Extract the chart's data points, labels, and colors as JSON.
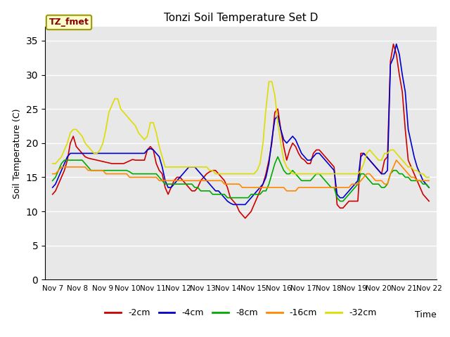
{
  "title": "Tonzi Soil Temperature Set D",
  "xlabel": "Time",
  "ylabel": "Soil Temperature (C)",
  "ylim": [
    0,
    37
  ],
  "yticks": [
    0,
    5,
    10,
    15,
    20,
    25,
    30,
    35
  ],
  "annotation_label": "TZ_fmet",
  "annotation_box_facecolor": "#ffffcc",
  "annotation_box_edgecolor": "#999900",
  "annotation_text_color": "#880000",
  "plot_bg_color": "#e8e8e8",
  "fig_bg_color": "#ffffff",
  "grid_color": "#ffffff",
  "x_labels": [
    "Nov 7",
    "Nov 8",
    "Nov 9",
    "Nov 10",
    "Nov 11",
    "Nov 12",
    "Nov 13",
    "Nov 14",
    "Nov 15",
    "Nov 16",
    "Nov 17",
    "Nov 18",
    "Nov 19",
    "Nov 20",
    "Nov 21",
    "Nov 22"
  ],
  "n_per_day": 8,
  "series": {
    "-2cm": {
      "color": "#cc0000",
      "data": [
        12.5,
        13.0,
        14.0,
        15.0,
        16.0,
        17.5,
        20.0,
        21.0,
        19.5,
        19.0,
        18.5,
        18.0,
        17.8,
        17.7,
        17.6,
        17.5,
        17.4,
        17.3,
        17.2,
        17.1,
        17.0,
        17.0,
        17.0,
        17.0,
        17.0,
        17.2,
        17.4,
        17.6,
        17.5,
        17.5,
        17.5,
        17.5,
        19.0,
        19.5,
        19.0,
        17.0,
        16.0,
        15.5,
        13.5,
        12.5,
        13.5,
        14.5,
        15.0,
        15.0,
        14.5,
        14.0,
        13.5,
        13.0,
        13.0,
        13.5,
        14.5,
        15.0,
        15.5,
        15.8,
        16.0,
        16.0,
        15.5,
        15.0,
        14.5,
        13.5,
        12.0,
        11.5,
        11.0,
        10.0,
        9.5,
        9.0,
        9.5,
        10.0,
        11.0,
        12.0,
        13.0,
        14.0,
        15.5,
        17.5,
        20.0,
        24.5,
        25.0,
        22.0,
        19.5,
        17.5,
        19.0,
        20.0,
        19.5,
        18.5,
        17.8,
        17.5,
        17.0,
        17.0,
        18.5,
        19.0,
        19.0,
        18.5,
        18.0,
        17.5,
        17.0,
        16.5,
        11.0,
        10.5,
        10.5,
        11.0,
        11.5,
        11.5,
        11.5,
        11.5,
        18.5,
        18.5,
        18.0,
        17.5,
        17.0,
        16.5,
        16.0,
        15.5,
        17.5,
        18.0,
        32.0,
        34.5,
        33.0,
        30.0,
        27.5,
        22.0,
        17.5,
        16.5,
        15.5,
        14.5,
        13.5,
        12.5,
        12.0,
        11.5
      ]
    },
    "-4cm": {
      "color": "#0000cc",
      "data": [
        13.5,
        14.0,
        15.0,
        16.0,
        17.0,
        18.0,
        18.5,
        18.5,
        18.5,
        18.5,
        18.5,
        18.5,
        18.5,
        18.5,
        18.5,
        18.5,
        18.5,
        18.5,
        18.5,
        18.5,
        18.5,
        18.5,
        18.5,
        18.5,
        18.5,
        18.5,
        18.5,
        18.5,
        18.5,
        18.5,
        18.5,
        18.5,
        19.0,
        19.2,
        19.0,
        18.5,
        18.0,
        16.5,
        14.5,
        13.5,
        13.5,
        14.0,
        14.5,
        15.0,
        15.5,
        16.0,
        16.5,
        16.5,
        16.5,
        16.0,
        15.5,
        15.0,
        14.5,
        14.0,
        13.5,
        13.0,
        13.0,
        12.5,
        12.0,
        11.5,
        11.2,
        11.0,
        11.0,
        11.0,
        11.0,
        11.0,
        11.5,
        12.0,
        12.5,
        13.0,
        13.5,
        14.0,
        15.0,
        17.0,
        20.5,
        23.5,
        24.0,
        22.0,
        20.5,
        20.0,
        20.5,
        21.0,
        20.5,
        19.5,
        18.5,
        18.0,
        17.5,
        17.5,
        18.0,
        18.5,
        18.5,
        18.0,
        17.5,
        17.0,
        16.5,
        16.0,
        12.5,
        12.0,
        12.0,
        12.5,
        13.0,
        13.5,
        14.0,
        14.5,
        18.0,
        18.5,
        18.0,
        17.5,
        17.0,
        16.5,
        16.0,
        15.5,
        15.5,
        16.0,
        31.5,
        32.5,
        34.5,
        33.0,
        30.0,
        27.5,
        22.0,
        20.0,
        18.0,
        16.5,
        15.5,
        14.5,
        14.0,
        13.5
      ]
    },
    "-8cm": {
      "color": "#00aa00",
      "data": [
        14.5,
        15.0,
        16.0,
        17.0,
        17.5,
        17.5,
        17.5,
        17.5,
        17.5,
        17.5,
        17.5,
        17.0,
        16.5,
        16.0,
        16.0,
        16.0,
        16.0,
        16.0,
        16.0,
        16.0,
        16.0,
        16.0,
        16.0,
        16.0,
        16.0,
        16.0,
        15.8,
        15.5,
        15.5,
        15.5,
        15.5,
        15.5,
        15.5,
        15.5,
        15.5,
        15.5,
        15.0,
        14.5,
        14.0,
        14.0,
        14.0,
        14.0,
        14.0,
        14.0,
        14.0,
        14.0,
        14.0,
        14.0,
        13.5,
        13.5,
        13.0,
        13.0,
        13.0,
        13.0,
        12.5,
        12.5,
        12.5,
        12.5,
        12.5,
        12.0,
        12.0,
        12.0,
        12.0,
        12.0,
        12.0,
        12.0,
        12.0,
        12.5,
        12.5,
        12.5,
        12.5,
        13.0,
        13.0,
        14.0,
        15.5,
        17.0,
        18.0,
        17.0,
        16.0,
        15.5,
        15.5,
        16.0,
        15.5,
        15.0,
        14.5,
        14.5,
        14.5,
        14.5,
        15.0,
        15.5,
        15.5,
        15.0,
        14.5,
        14.0,
        13.5,
        13.5,
        12.0,
        11.5,
        11.5,
        12.0,
        12.5,
        13.0,
        13.5,
        14.0,
        15.5,
        15.5,
        15.0,
        14.5,
        14.0,
        14.0,
        14.0,
        13.5,
        13.5,
        14.0,
        15.5,
        16.0,
        16.0,
        15.5,
        15.5,
        15.0,
        15.0,
        14.5,
        14.5,
        14.5,
        14.5,
        14.0,
        14.0,
        13.5
      ]
    },
    "-16cm": {
      "color": "#ff8800",
      "data": [
        15.5,
        15.5,
        16.0,
        16.5,
        16.5,
        16.5,
        16.5,
        16.5,
        16.5,
        16.5,
        16.5,
        16.5,
        16.0,
        16.0,
        16.0,
        16.0,
        16.0,
        16.0,
        15.5,
        15.5,
        15.5,
        15.5,
        15.5,
        15.5,
        15.5,
        15.5,
        15.0,
        15.0,
        15.0,
        15.0,
        15.0,
        15.0,
        15.0,
        15.0,
        15.0,
        15.0,
        14.5,
        14.5,
        14.5,
        14.5,
        14.5,
        14.5,
        14.5,
        14.5,
        14.5,
        14.5,
        14.5,
        14.5,
        14.5,
        14.5,
        14.5,
        14.5,
        14.5,
        14.5,
        14.5,
        14.5,
        14.5,
        14.5,
        14.0,
        14.0,
        14.0,
        14.0,
        14.0,
        14.0,
        13.5,
        13.5,
        13.5,
        13.5,
        13.5,
        13.5,
        13.5,
        13.5,
        13.5,
        13.5,
        13.5,
        13.5,
        13.5,
        13.5,
        13.5,
        13.0,
        13.0,
        13.0,
        13.0,
        13.5,
        13.5,
        13.5,
        13.5,
        13.5,
        13.5,
        13.5,
        13.5,
        13.5,
        13.5,
        13.5,
        13.5,
        13.5,
        13.5,
        13.5,
        13.5,
        13.5,
        13.5,
        14.0,
        14.0,
        14.0,
        14.5,
        15.0,
        15.5,
        15.5,
        15.0,
        14.5,
        14.5,
        14.5,
        14.0,
        14.0,
        15.5,
        16.5,
        17.5,
        17.0,
        16.5,
        16.0,
        15.5,
        15.0,
        15.0,
        14.5,
        14.5,
        14.5,
        14.5,
        14.5
      ]
    },
    "-32cm": {
      "color": "#dddd00",
      "data": [
        17.0,
        17.0,
        17.5,
        18.0,
        19.0,
        20.0,
        21.5,
        22.0,
        22.0,
        21.5,
        21.0,
        20.0,
        19.5,
        19.0,
        18.5,
        18.5,
        19.0,
        20.0,
        22.0,
        24.5,
        25.5,
        26.5,
        26.5,
        25.0,
        24.5,
        24.0,
        23.5,
        23.0,
        22.5,
        21.5,
        21.0,
        20.5,
        21.0,
        23.0,
        23.0,
        21.5,
        19.5,
        18.0,
        16.5,
        16.5,
        16.5,
        16.5,
        16.5,
        16.5,
        16.5,
        16.5,
        16.5,
        16.5,
        16.5,
        16.5,
        16.5,
        16.5,
        16.5,
        16.0,
        16.0,
        15.5,
        15.5,
        15.5,
        15.5,
        15.5,
        15.5,
        15.5,
        15.5,
        15.5,
        15.5,
        15.5,
        15.5,
        15.5,
        15.5,
        16.0,
        17.0,
        20.0,
        25.0,
        29.0,
        29.0,
        27.0,
        23.0,
        20.0,
        17.5,
        16.5,
        16.0,
        15.5,
        15.5,
        15.5,
        15.5,
        15.5,
        15.5,
        15.5,
        15.5,
        15.5,
        15.5,
        15.5,
        15.5,
        15.5,
        15.5,
        15.5,
        15.5,
        15.5,
        15.5,
        15.5,
        15.5,
        15.5,
        15.5,
        15.5,
        16.0,
        17.0,
        18.5,
        19.0,
        18.5,
        18.0,
        17.5,
        17.5,
        18.5,
        18.5,
        19.0,
        19.0,
        18.5,
        18.0,
        17.5,
        17.0,
        16.5,
        16.5,
        16.0,
        16.0,
        15.5,
        15.5,
        15.0,
        15.0
      ]
    }
  }
}
